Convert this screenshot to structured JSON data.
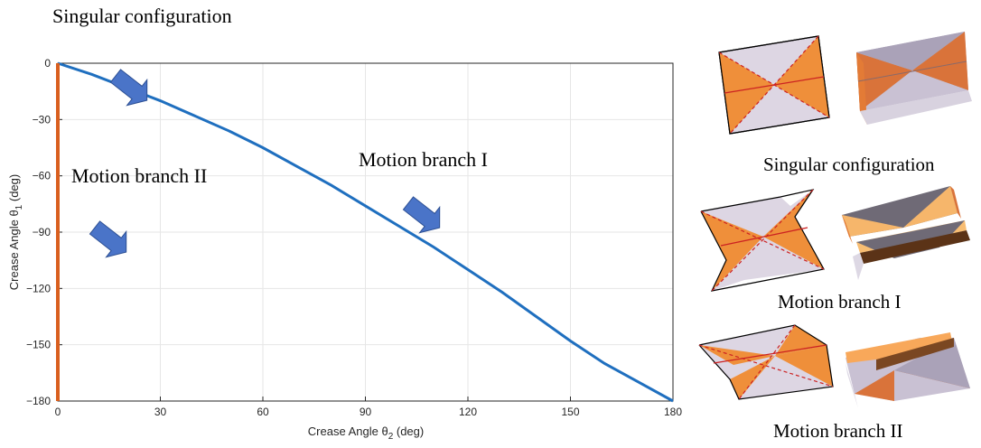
{
  "chart_data": {
    "type": "line",
    "xlabel": "Crease Angle θ",
    "xlabel_sub": "2",
    "xlabel_unit": " (deg)",
    "ylabel": "Crease Angle θ",
    "ylabel_sub": "1",
    "ylabel_unit": " (deg)",
    "xlim": [
      0,
      180
    ],
    "ylim": [
      -180,
      0
    ],
    "xticks": [
      0,
      30,
      60,
      90,
      120,
      150,
      180
    ],
    "yticks": [
      0,
      -30,
      -60,
      -90,
      -120,
      -150,
      -180
    ],
    "ytick_labels": [
      "0",
      "−30",
      "−60",
      "−90",
      "−120",
      "−150",
      "−180"
    ],
    "grid": true,
    "series": [
      {
        "color": "#1f6fbf",
        "x": [
          0,
          10,
          20,
          30,
          40,
          50,
          60,
          70,
          80,
          90,
          100,
          110,
          120,
          130,
          140,
          150,
          160,
          170,
          180
        ],
        "y": [
          0,
          -6,
          -13,
          -20,
          -28,
          -36,
          -45,
          -55,
          -65,
          -76,
          -87,
          -98,
          -110,
          -122,
          -135,
          -148,
          -160,
          -170,
          -180
        ]
      },
      {
        "color": "#d95f1e",
        "x": [
          0,
          0
        ],
        "y": [
          0,
          -180
        ]
      }
    ],
    "annotations": {
      "singular": "Singular configuration",
      "branch1": "Motion branch I",
      "branch2": "Motion branch II"
    }
  },
  "captions": {
    "singular": "Singular configuration",
    "branch1": "Motion branch I",
    "branch2": "Motion branch II"
  },
  "colors": {
    "orange_face": "#ef8f3a",
    "lilac_face": "#ddd6e3",
    "crease_red": "#cc2222",
    "arrow_blue": "#4a74c8"
  }
}
